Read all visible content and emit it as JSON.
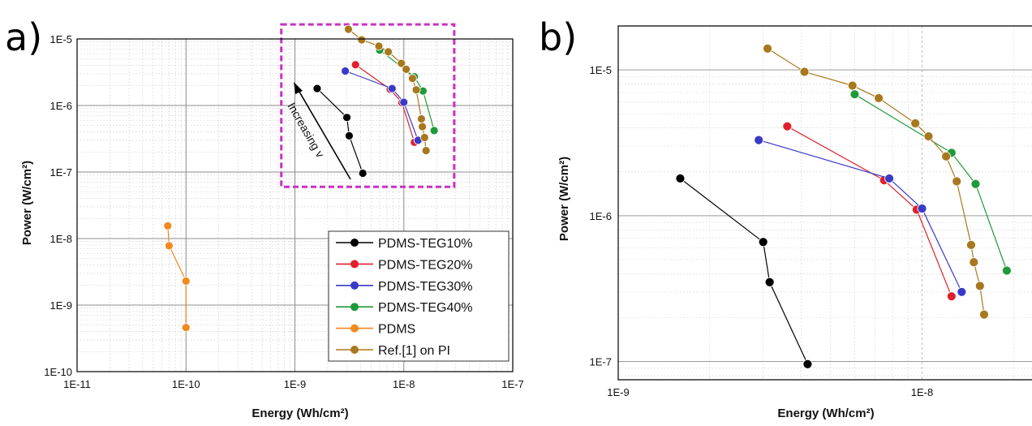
{
  "panels": [
    {
      "letter": "a)"
    },
    {
      "letter": "b)"
    }
  ],
  "colors": {
    "PDMS-TEG10%": "#000000",
    "PDMS-TEG20%": "#e0202a",
    "PDMS-TEG30%": "#3a3ac8",
    "PDMS-TEG40%": "#1f9a3a",
    "PDMS": "#f08a1e",
    "Ref.[1] on PI": "#a8781e",
    "highlight_box": "#c832c0"
  },
  "chart_data": [
    {
      "type": "scatter",
      "panel": "a)",
      "xlabel": "Energy (Wh/cm²)",
      "ylabel": "Power (W/cm²)",
      "xscale": "log",
      "yscale": "log",
      "xlim": [
        1e-11,
        1e-07
      ],
      "ylim": [
        1e-10,
        1e-05
      ],
      "xticks": [
        "1E-11",
        "1E-10",
        "1E-9",
        "1E-8",
        "1E-7"
      ],
      "yticks": [
        "1E-10",
        "1E-9",
        "1E-8",
        "1E-7",
        "1E-6",
        "1E-5"
      ],
      "grid": true,
      "legend_position": "bottom-right",
      "annotation": "Increasing v",
      "series": [
        {
          "name": "PDMS-TEG10%",
          "x": [
            1.6e-09,
            3e-09,
            3.15e-09,
            4.2e-09
          ],
          "y": [
            1.8e-06,
            6.6e-07,
            3.5e-07,
            9.6e-08
          ]
        },
        {
          "name": "PDMS-TEG20%",
          "x": [
            3.6e-09,
            7.5e-09,
            9.6e-09,
            1.25e-08
          ],
          "y": [
            4.1e-06,
            1.75e-06,
            1.1e-06,
            2.8e-07
          ]
        },
        {
          "name": "PDMS-TEG30%",
          "x": [
            2.9e-09,
            7.8e-09,
            1e-08,
            1.35e-08
          ],
          "y": [
            3.3e-06,
            1.8e-06,
            1.12e-06,
            3e-07
          ]
        },
        {
          "name": "PDMS-TEG40%",
          "x": [
            6e-09,
            1.25e-08,
            1.5e-08,
            1.9e-08
          ],
          "y": [
            6.8e-06,
            2.7e-06,
            1.65e-06,
            4.2e-07
          ]
        },
        {
          "name": "PDMS",
          "x": [
            6.8e-11,
            7e-11,
            1e-10,
            1e-10
          ],
          "y": [
            1.55e-08,
            7.8e-09,
            2.3e-09,
            4.6e-10
          ]
        },
        {
          "name": "Ref.[1] on PI",
          "x": [
            3.1e-09,
            4.1e-09,
            5.9e-09,
            7.2e-09,
            9.5e-09,
            1.05e-08,
            1.2e-08,
            1.3e-08,
            1.45e-08,
            1.48e-08,
            1.55e-08,
            1.6e-08
          ],
          "y": [
            1.4e-05,
            9.7e-06,
            7.8e-06,
            6.4e-06,
            4.3e-06,
            3.5e-06,
            2.55e-06,
            1.72e-06,
            6.3e-07,
            4.8e-07,
            3.3e-07,
            2.1e-07
          ]
        }
      ]
    },
    {
      "type": "scatter",
      "panel": "b)",
      "xlabel": "Energy (Wh/cm²)",
      "ylabel": "Power (W/cm²)",
      "xscale": "log",
      "yscale": "log",
      "xlim": [
        1e-09,
        2.3e-08
      ],
      "ylim": [
        7.5e-08,
        2e-05
      ],
      "xticks": [
        "1E-9",
        "1E-8"
      ],
      "yticks": [
        "1E-7",
        "1E-6",
        "1E-5"
      ],
      "grid": true,
      "series": [
        {
          "name": "PDMS-TEG10%",
          "x": [
            1.6e-09,
            3e-09,
            3.15e-09,
            4.2e-09
          ],
          "y": [
            1.8e-06,
            6.6e-07,
            3.5e-07,
            9.6e-08
          ]
        },
        {
          "name": "PDMS-TEG20%",
          "x": [
            3.6e-09,
            7.5e-09,
            9.6e-09,
            1.25e-08
          ],
          "y": [
            4.1e-06,
            1.75e-06,
            1.1e-06,
            2.8e-07
          ]
        },
        {
          "name": "PDMS-TEG30%",
          "x": [
            2.9e-09,
            7.8e-09,
            1e-08,
            1.35e-08
          ],
          "y": [
            3.3e-06,
            1.8e-06,
            1.12e-06,
            3e-07
          ]
        },
        {
          "name": "PDMS-TEG40%",
          "x": [
            6e-09,
            1.25e-08,
            1.5e-08,
            1.9e-08
          ],
          "y": [
            6.8e-06,
            2.7e-06,
            1.65e-06,
            4.2e-07
          ]
        },
        {
          "name": "Ref.[1] on PI",
          "x": [
            3.1e-09,
            4.1e-09,
            5.9e-09,
            7.2e-09,
            9.5e-09,
            1.05e-08,
            1.2e-08,
            1.3e-08,
            1.45e-08,
            1.48e-08,
            1.55e-08,
            1.6e-08
          ],
          "y": [
            1.4e-05,
            9.7e-06,
            7.8e-06,
            6.4e-06,
            4.3e-06,
            3.5e-06,
            2.55e-06,
            1.72e-06,
            6.3e-07,
            4.8e-07,
            3.3e-07,
            2.1e-07
          ]
        }
      ]
    }
  ]
}
